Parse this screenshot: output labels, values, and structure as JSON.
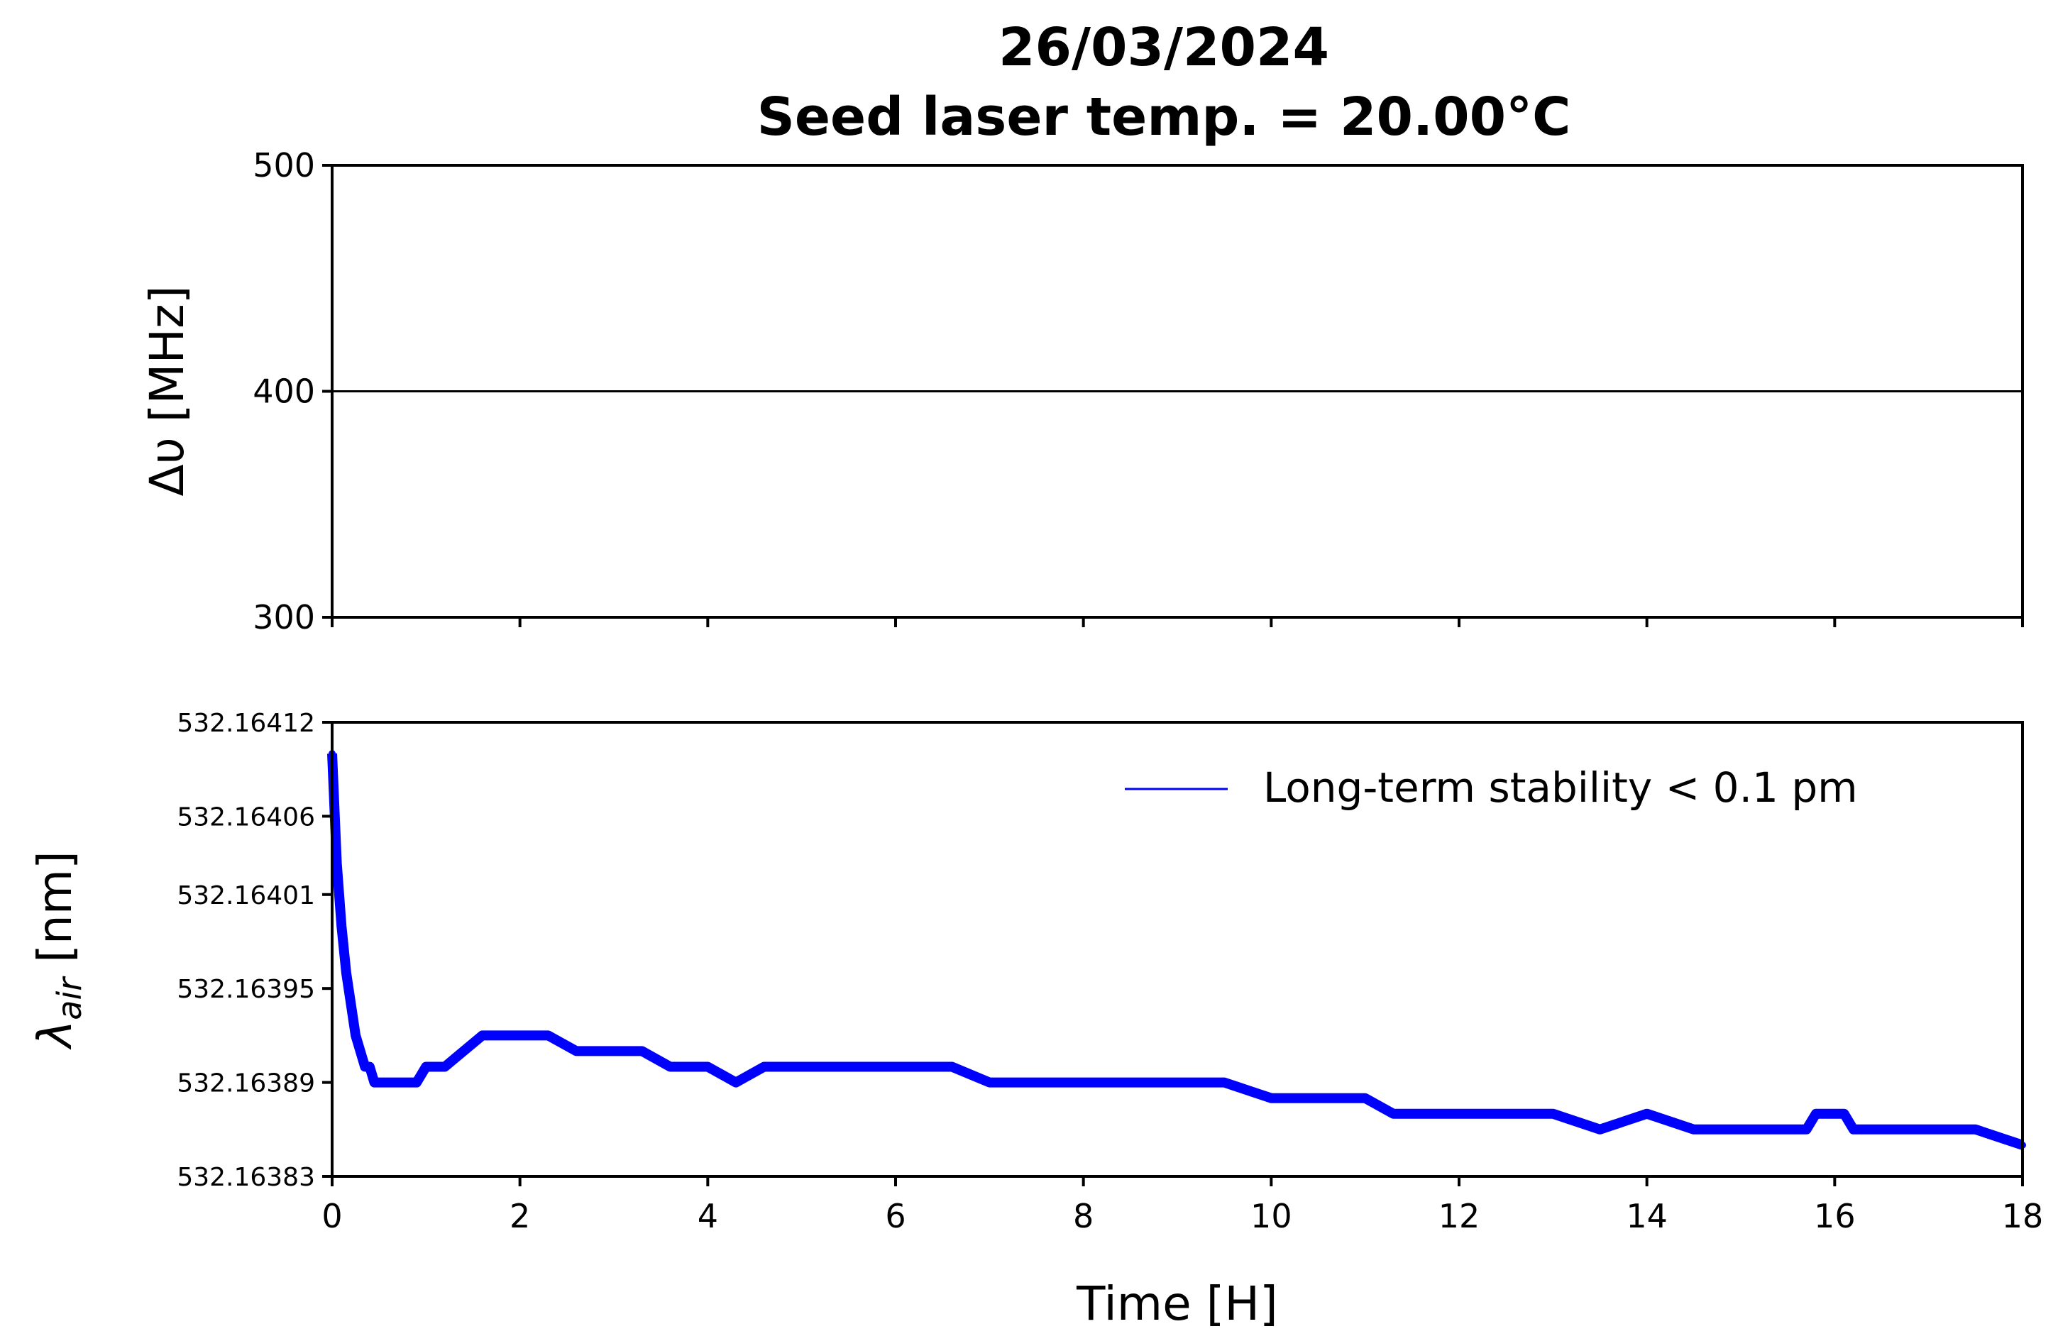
{
  "title_line1": "26/03/2024",
  "title_line2": "Seed laser temp. = 20.00°C",
  "chart_data": [
    {
      "type": "line",
      "panel": "top",
      "ylabel": "Δυ [MHz]",
      "ylim": [
        300,
        500
      ],
      "xlim": [
        0,
        18
      ],
      "yticks": [
        "300",
        "400",
        "500"
      ],
      "xticks": [
        0,
        2,
        4,
        6,
        8,
        10,
        12,
        14,
        16,
        18
      ],
      "x_tick_labels_shown": false,
      "series": [
        {
          "color": "#000000",
          "x": [
            0,
            18
          ],
          "y": [
            400,
            400
          ]
        }
      ]
    },
    {
      "type": "line",
      "panel": "bottom",
      "ylabel": "λair [nm]",
      "xlabel": "Time [H]",
      "xlim": [
        0,
        18
      ],
      "ylim": [
        532.16383,
        532.16412
      ],
      "yticks": [
        "532.16383",
        "532.16389",
        "532.16395",
        "532.16401",
        "532.16406",
        "532.16412"
      ],
      "xticks": [
        "0",
        "2",
        "4",
        "6",
        "8",
        "10",
        "12",
        "14",
        "16",
        "18"
      ],
      "legend": "upper right",
      "series": [
        {
          "name": "Long-term stability < 0.1 pm",
          "color": "#0000ff",
          "x": [
            0,
            0.05,
            0.1,
            0.15,
            0.2,
            0.25,
            0.3,
            0.35,
            0.4,
            0.45,
            0.5,
            0.7,
            0.9,
            1.0,
            1.2,
            1.4,
            1.6,
            1.8,
            2.0,
            2.3,
            2.6,
            3.0,
            3.3,
            3.6,
            4.0,
            4.3,
            4.6,
            5.0,
            5.4,
            5.8,
            6.2,
            6.6,
            7.0,
            7.3,
            7.6,
            8.0,
            8.5,
            9.0,
            9.5,
            10.0,
            10.5,
            11.0,
            11.3,
            11.6,
            12.0,
            12.5,
            13.0,
            13.5,
            14.0,
            14.5,
            15.0,
            15.4,
            15.7,
            15.8,
            16.1,
            16.2,
            16.6,
            17.0,
            17.5,
            18.0
          ],
          "y": [
            532.1641,
            532.16403,
            532.16399,
            532.16396,
            532.16394,
            532.16392,
            532.16391,
            532.1639,
            532.1639,
            532.16389,
            532.16389,
            532.16389,
            532.16389,
            532.1639,
            532.1639,
            532.16391,
            532.16392,
            532.16392,
            532.16392,
            532.16392,
            532.16391,
            532.16391,
            532.16391,
            532.1639,
            532.1639,
            532.16389,
            532.1639,
            532.1639,
            532.1639,
            532.1639,
            532.1639,
            532.1639,
            532.16389,
            532.16389,
            532.16389,
            532.16389,
            532.16389,
            532.16389,
            532.16389,
            532.16388,
            532.16388,
            532.16388,
            532.16387,
            532.16387,
            532.16387,
            532.16387,
            532.16387,
            532.16386,
            532.16387,
            532.16386,
            532.16386,
            532.16386,
            532.16386,
            532.16387,
            532.16387,
            532.16386,
            532.16386,
            532.16386,
            532.16386,
            532.16385
          ]
        }
      ]
    }
  ]
}
